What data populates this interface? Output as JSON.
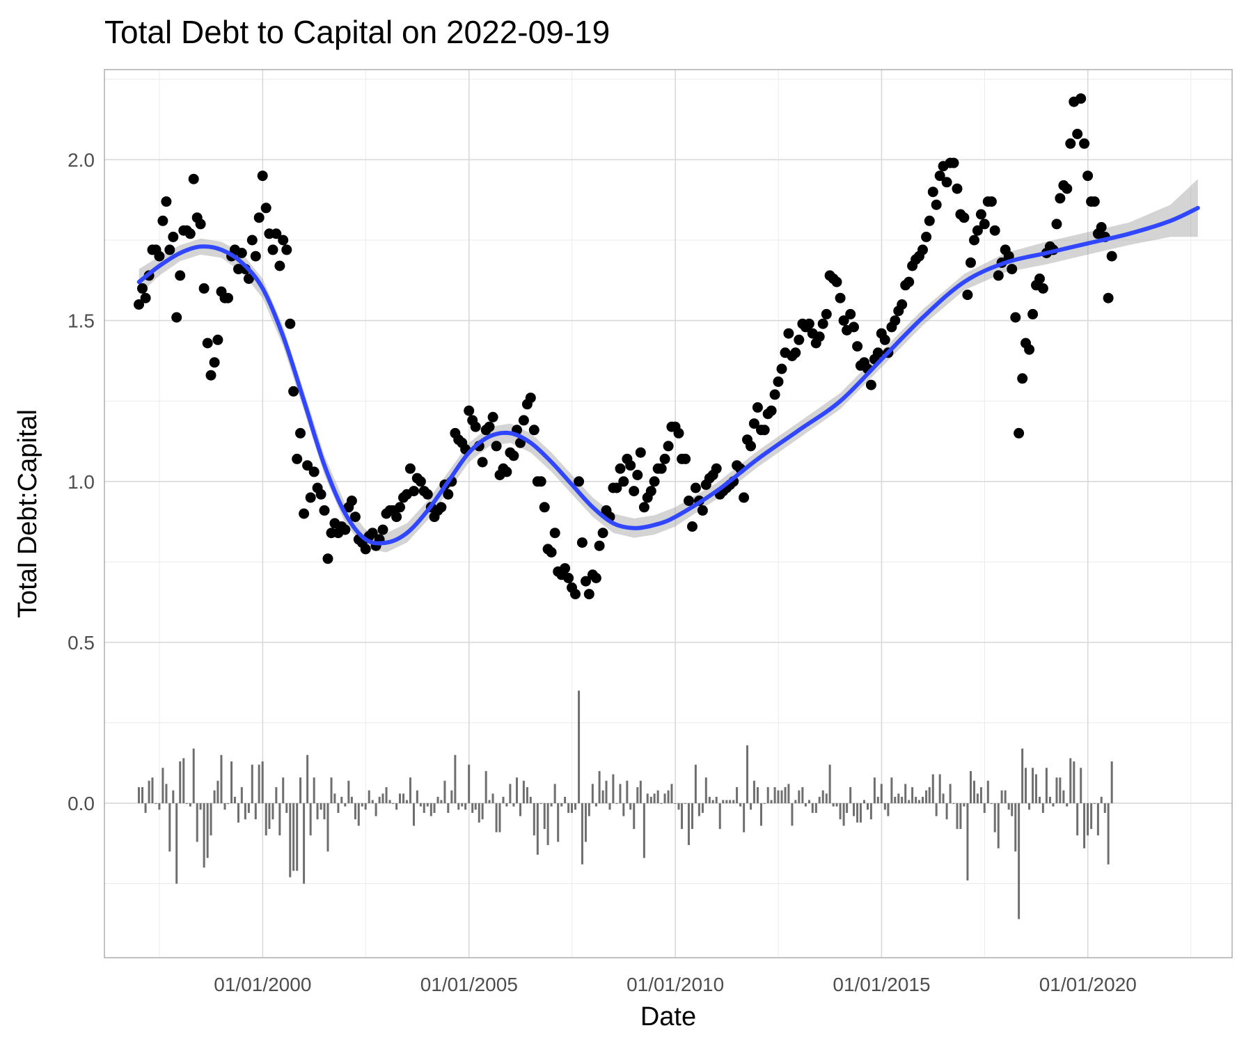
{
  "chart_data": {
    "type": "scatter",
    "title": "Total Debt to Capital on 2022-09-19",
    "xlabel": "Date",
    "ylabel": "Total Debt:Capital",
    "xlim": [
      "1996-03-01",
      "2023-07-01"
    ],
    "ylim": [
      -0.48,
      2.28
    ],
    "x_ticks": [
      {
        "date": "2000-01-01",
        "label": "01/01/2000"
      },
      {
        "date": "2005-01-01",
        "label": "01/01/2005"
      },
      {
        "date": "2010-01-01",
        "label": "01/01/2010"
      },
      {
        "date": "2015-01-01",
        "label": "01/01/2015"
      },
      {
        "date": "2020-01-01",
        "label": "01/01/2020"
      }
    ],
    "y_ticks": [
      {
        "value": 0.0,
        "label": "0.0"
      },
      {
        "value": 0.5,
        "label": "0.5"
      },
      {
        "value": 1.0,
        "label": "1.0"
      },
      {
        "value": 1.5,
        "label": "1.5"
      },
      {
        "value": 2.0,
        "label": "2.0"
      }
    ],
    "grid": true,
    "point_color": "#000000",
    "smooth_color": "#3047ff",
    "band_color": "#999999",
    "bar_color": "#6e6e6e",
    "start_date": "1996-12-31",
    "points": [
      1.55,
      1.6,
      1.57,
      1.64,
      1.72,
      1.72,
      1.7,
      1.81,
      1.87,
      1.72,
      1.76,
      1.51,
      1.64,
      1.78,
      1.78,
      1.77,
      1.94,
      1.82,
      1.8,
      1.6,
      1.43,
      1.33,
      1.37,
      1.44,
      1.59,
      1.57,
      1.57,
      1.7,
      1.72,
      1.66,
      1.71,
      1.66,
      1.63,
      1.75,
      1.7,
      1.82,
      1.95,
      1.85,
      1.77,
      1.72,
      1.77,
      1.67,
      1.75,
      1.72,
      1.49,
      1.28,
      1.07,
      1.15,
      0.9,
      1.05,
      0.95,
      1.03,
      0.98,
      0.96,
      0.91,
      0.76,
      0.84,
      0.87,
      0.84,
      0.86,
      0.85,
      0.92,
      0.94,
      0.89,
      0.82,
      0.81,
      0.79,
      0.83,
      0.84,
      0.8,
      0.82,
      0.85,
      0.9,
      0.91,
      0.91,
      0.89,
      0.92,
      0.95,
      0.96,
      1.04,
      0.97,
      1.01,
      1.0,
      0.97,
      0.96,
      0.92,
      0.89,
      0.91,
      0.92,
      0.99,
      0.96,
      1.0,
      1.15,
      1.13,
      1.12,
      1.1,
      1.22,
      1.19,
      1.17,
      1.11,
      1.06,
      1.16,
      1.17,
      1.2,
      1.11,
      1.02,
      1.04,
      1.03,
      1.09,
      1.08,
      1.16,
      1.12,
      1.19,
      1.24,
      1.26,
      1.16,
      1.0,
      1.0,
      0.92,
      0.79,
      0.78,
      0.84,
      0.72,
      0.71,
      0.73,
      0.7,
      0.67,
      0.65,
      1.0,
      0.81,
      0.69,
      0.65,
      0.71,
      0.7,
      0.8,
      0.84,
      0.91,
      0.89,
      0.98,
      0.98,
      1.04,
      1.0,
      1.07,
      1.05,
      0.97,
      1.02,
      1.09,
      0.92,
      0.95,
      0.97,
      1.0,
      1.04,
      1.04,
      1.07,
      1.11,
      1.17,
      1.17,
      1.15,
      1.07,
      1.07,
      0.94,
      0.86,
      0.98,
      0.94,
      0.91,
      0.99,
      1.01,
      1.02,
      1.04,
      0.96,
      0.97,
      0.98,
      0.99,
      1.0,
      1.05,
      1.04,
      0.95,
      1.13,
      1.11,
      1.18,
      1.23,
      1.16,
      1.16,
      1.21,
      1.22,
      1.27,
      1.31,
      1.35,
      1.4,
      1.46,
      1.39,
      1.4,
      1.44,
      1.49,
      1.48,
      1.49,
      1.46,
      1.43,
      1.45,
      1.49,
      1.52,
      1.64,
      1.63,
      1.62,
      1.57,
      1.5,
      1.47,
      1.52,
      1.48,
      1.42,
      1.36,
      1.37,
      1.35,
      1.3,
      1.38,
      1.4,
      1.46,
      1.44,
      1.4,
      1.48,
      1.5,
      1.53,
      1.55,
      1.61,
      1.62,
      1.67,
      1.69,
      1.7,
      1.72,
      1.76,
      1.81,
      1.9,
      1.86,
      1.95,
      1.98,
      1.93,
      1.99,
      1.99,
      1.91,
      1.83,
      1.82,
      1.58,
      1.68,
      1.75,
      1.78,
      1.83,
      1.8,
      1.87,
      1.87,
      1.78,
      1.64,
      1.68,
      1.72,
      1.7,
      1.66,
      1.51,
      1.15,
      1.32,
      1.43,
      1.41,
      1.52,
      1.61,
      1.63,
      1.6,
      1.71,
      1.73,
      1.72,
      1.8,
      1.88,
      1.92,
      1.91,
      2.05,
      2.18,
      2.08,
      2.19,
      2.05,
      1.95,
      1.87,
      1.87,
      1.77,
      1.79,
      1.76,
      1.57,
      1.7
    ],
    "smooth": {
      "x": [
        "1997-01-01",
        "1997-07-01",
        "1998-01-01",
        "1998-07-01",
        "1999-01-01",
        "1999-07-01",
        "2000-01-01",
        "2000-07-01",
        "2001-01-01",
        "2001-07-01",
        "2002-01-01",
        "2002-07-01",
        "2003-01-01",
        "2003-07-01",
        "2004-01-01",
        "2004-07-01",
        "2005-01-01",
        "2005-07-01",
        "2006-01-01",
        "2006-07-01",
        "2007-01-01",
        "2007-07-01",
        "2008-01-01",
        "2008-07-01",
        "2009-01-01",
        "2009-07-01",
        "2010-01-01",
        "2011-01-01",
        "2012-01-01",
        "2013-01-01",
        "2014-01-01",
        "2015-01-01",
        "2016-01-01",
        "2017-01-01",
        "2018-01-01",
        "2019-01-01",
        "2020-01-01",
        "2021-01-01",
        "2022-01-01",
        "2022-09-01"
      ],
      "y": [
        1.62,
        1.67,
        1.71,
        1.73,
        1.72,
        1.68,
        1.6,
        1.45,
        1.25,
        1.05,
        0.9,
        0.82,
        0.81,
        0.84,
        0.91,
        1.0,
        1.09,
        1.14,
        1.15,
        1.12,
        1.06,
        0.99,
        0.92,
        0.87,
        0.855,
        0.865,
        0.89,
        0.97,
        1.07,
        1.16,
        1.25,
        1.38,
        1.51,
        1.62,
        1.68,
        1.71,
        1.74,
        1.77,
        1.81,
        1.85
      ],
      "se": [
        0.04,
        0.03,
        0.025,
        0.025,
        0.025,
        0.03,
        0.03,
        0.03,
        0.03,
        0.03,
        0.03,
        0.03,
        0.03,
        0.03,
        0.03,
        0.03,
        0.03,
        0.03,
        0.03,
        0.03,
        0.03,
        0.03,
        0.03,
        0.03,
        0.03,
        0.03,
        0.03,
        0.025,
        0.025,
        0.025,
        0.025,
        0.025,
        0.025,
        0.025,
        0.03,
        0.035,
        0.035,
        0.035,
        0.05,
        0.09
      ]
    }
  }
}
